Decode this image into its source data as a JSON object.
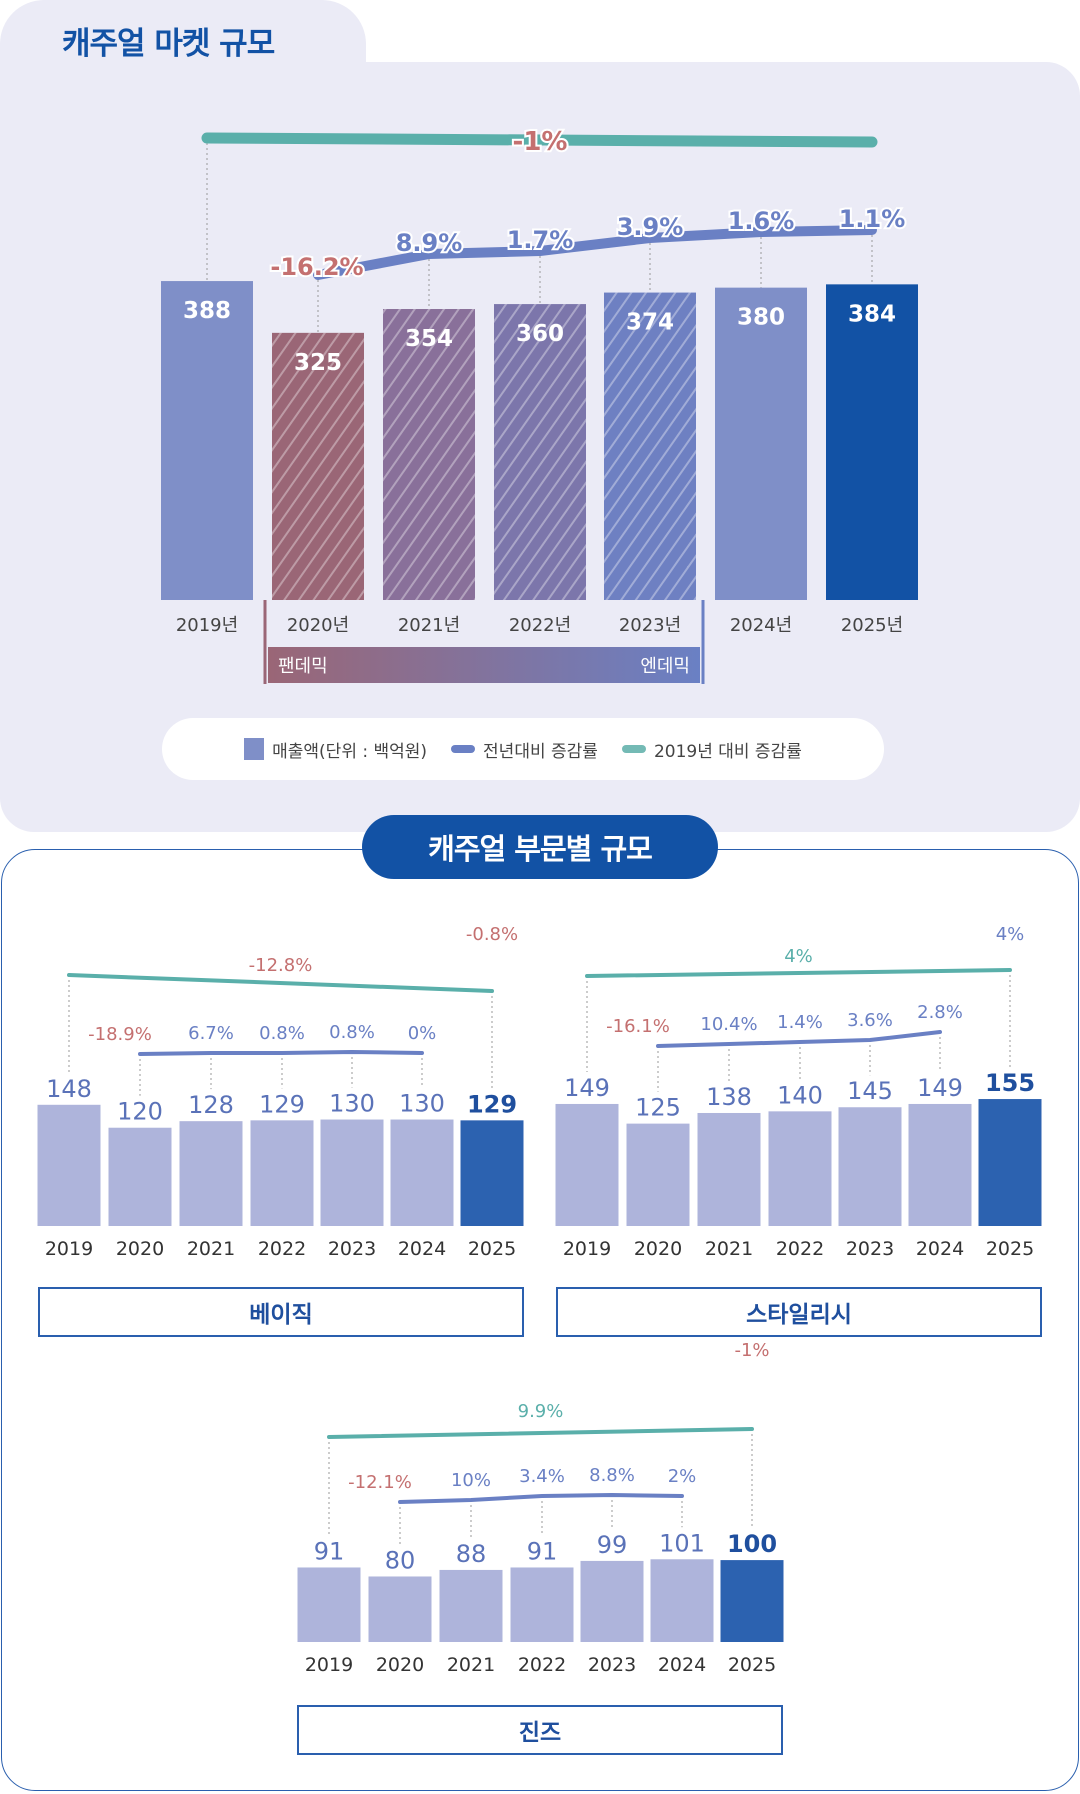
{
  "title_main": "캐주얼 마켓 규모",
  "title_segment": "캐주얼 부문별 규모",
  "legend": {
    "bar": "매출액(단위 : 백억원)",
    "yoy": "전년대비 증감률",
    "vs2019": "2019년 대비 증감률"
  },
  "period": {
    "start": "팬데믹",
    "end": "엔데믹"
  },
  "colors": {
    "title": "#1252a5",
    "bar": "#7f8fc8",
    "bar_latest": "#1252a5",
    "yoy_line": "#6a80c4",
    "vs2019_line": "#5aafaa",
    "negative": "#c47070",
    "sub_bar": "#aeb4db",
    "sub_bar_latest": "#2c62b0"
  },
  "chart_data": [
    {
      "type": "bar",
      "title": "캐주얼 마켓 규모",
      "categories": [
        "2019년",
        "2020년",
        "2021년",
        "2022년",
        "2023년",
        "2024년",
        "2025년"
      ],
      "values": [
        388,
        325,
        354,
        360,
        374,
        380,
        384
      ],
      "value_labels": [
        "388",
        "325",
        "354",
        "360",
        "374",
        "380",
        "384"
      ],
      "yoy_labels": [
        "",
        "-16.2%",
        "8.9%",
        "1.7%",
        "3.9%",
        "1.6%",
        "1.1%"
      ],
      "vs2019_label": "-1%"
    },
    {
      "type": "bar",
      "title": "베이직",
      "categories": [
        "2019",
        "2020",
        "2021",
        "2022",
        "2023",
        "2024",
        "2025"
      ],
      "values": [
        148,
        120,
        128,
        129,
        130,
        130,
        129
      ],
      "value_labels": [
        "148",
        "120",
        "128",
        "129",
        "130",
        "130",
        "129"
      ],
      "yoy_labels": [
        "",
        "-18.9%",
        "6.7%",
        "0.8%",
        "0.8%",
        "0%",
        "-0.8%"
      ],
      "vs2019_label": "-12.8%"
    },
    {
      "type": "bar",
      "title": "스타일리시",
      "categories": [
        "2019",
        "2020",
        "2021",
        "2022",
        "2023",
        "2024",
        "2025"
      ],
      "values": [
        149,
        125,
        138,
        140,
        145,
        149,
        155
      ],
      "value_labels": [
        "149",
        "125",
        "138",
        "140",
        "145",
        "149",
        "155"
      ],
      "yoy_labels": [
        "",
        "-16.1%",
        "10.4%",
        "1.4%",
        "3.6%",
        "2.8%",
        "4%"
      ],
      "vs2019_label": "4%"
    },
    {
      "type": "bar",
      "title": "진즈",
      "categories": [
        "2019",
        "2020",
        "2021",
        "2022",
        "2023",
        "2024",
        "2025"
      ],
      "values": [
        91,
        80,
        88,
        91,
        99,
        101,
        100
      ],
      "value_labels": [
        "91",
        "80",
        "88",
        "91",
        "99",
        "101",
        "100"
      ],
      "yoy_labels": [
        "",
        "-12.1%",
        "10%",
        "3.4%",
        "8.8%",
        "2%",
        "-1%"
      ],
      "vs2019_label": "9.9%"
    }
  ]
}
